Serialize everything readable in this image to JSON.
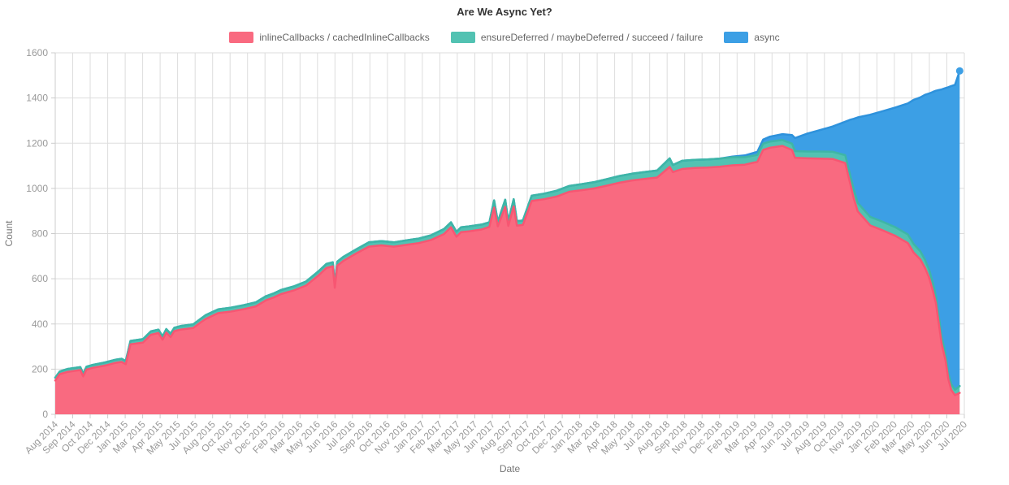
{
  "title": "Are We Async Yet?",
  "legend": [
    {
      "label": "inlineCallbacks / cachedInlineCallbacks",
      "color": "#F96A80",
      "edge": "#F75672"
    },
    {
      "label": "ensureDeferred / maybeDeferred / succeed / failure",
      "color": "#52C2B2",
      "edge": "#3EB6A6"
    },
    {
      "label": "async",
      "color": "#3C9FE5",
      "edge": "#2E92DC"
    }
  ],
  "colors": {
    "grid": "#DDDDDD",
    "axis": "#CCCCCC",
    "tick_text": "#999999",
    "axis_title_text": "#777777",
    "title_text": "#333333",
    "legend_text": "#666666",
    "background": "#FFFFFF"
  },
  "chart_data": {
    "type": "area",
    "stacked": true,
    "title": "Are We Async Yet?",
    "xlabel": "Date",
    "ylabel": "Count",
    "ylim": [
      0,
      1600
    ],
    "yticks": [
      0,
      200,
      400,
      600,
      800,
      1000,
      1200,
      1400,
      1600
    ],
    "grid": true,
    "legend_position": "top",
    "series_names": [
      "inlineCallbacks / cachedInlineCallbacks",
      "ensureDeferred / maybeDeferred / succeed / failure",
      "async"
    ],
    "xticklabels": [
      "Aug 2014",
      "Sep 2014",
      "Oct 2014",
      "Dec 2014",
      "Jan 2015",
      "Mar 2015",
      "Apr 2015",
      "May 2015",
      "Jul 2015",
      "Aug 2015",
      "Oct 2015",
      "Nov 2015",
      "Dec 2015",
      "Feb 2016",
      "Mar 2016",
      "May 2016",
      "Jun 2016",
      "Jul 2016",
      "Sep 2016",
      "Oct 2016",
      "Nov 2016",
      "Jan 2017",
      "Feb 2017",
      "Mar 2017",
      "May 2017",
      "Jun 2017",
      "Aug 2017",
      "Sep 2017",
      "Oct 2017",
      "Dec 2017",
      "Jan 2018",
      "Mar 2018",
      "Apr 2018",
      "May 2018",
      "Jul 2018",
      "Aug 2018",
      "Sep 2018",
      "Nov 2018",
      "Dec 2018",
      "Feb 2019",
      "Mar 2019",
      "Apr 2019",
      "Jun 2019",
      "Jul 2019",
      "Aug 2019",
      "Oct 2019",
      "Nov 2019",
      "Jan 2020",
      "Feb 2020",
      "Mar 2020",
      "May 2020",
      "Jun 2020",
      "Jul 2020"
    ],
    "columns": [
      "date",
      "inlineCallbacks / cachedInlineCallbacks",
      "ensureDeferred / maybeDeferred / succeed / failure",
      "async"
    ],
    "points": [
      [
        "2014-08-01",
        150,
        12,
        0
      ],
      [
        "2014-08-12",
        178,
        12,
        0
      ],
      [
        "2014-09-01",
        188,
        13,
        0
      ],
      [
        "2014-10-01",
        196,
        13,
        0
      ],
      [
        "2014-10-08",
        168,
        12,
        0
      ],
      [
        "2014-10-16",
        198,
        13,
        0
      ],
      [
        "2014-11-01",
        206,
        13,
        0
      ],
      [
        "2014-12-01",
        216,
        14,
        0
      ],
      [
        "2014-12-26",
        228,
        14,
        0
      ],
      [
        "2015-01-10",
        232,
        14,
        0
      ],
      [
        "2015-01-20",
        222,
        14,
        0
      ],
      [
        "2015-02-01",
        310,
        15,
        0
      ],
      [
        "2015-03-01",
        318,
        15,
        0
      ],
      [
        "2015-03-20",
        352,
        15,
        0
      ],
      [
        "2015-04-08",
        360,
        15,
        0
      ],
      [
        "2015-04-18",
        330,
        15,
        0
      ],
      [
        "2015-04-27",
        362,
        15,
        0
      ],
      [
        "2015-05-07",
        342,
        15,
        0
      ],
      [
        "2015-05-16",
        368,
        15,
        0
      ],
      [
        "2015-06-01",
        375,
        16,
        0
      ],
      [
        "2015-07-01",
        382,
        16,
        0
      ],
      [
        "2015-07-20",
        408,
        16,
        0
      ],
      [
        "2015-08-01",
        422,
        17,
        0
      ],
      [
        "2015-09-01",
        448,
        17,
        0
      ],
      [
        "2015-10-01",
        455,
        17,
        0
      ],
      [
        "2015-11-01",
        465,
        18,
        0
      ],
      [
        "2015-12-01",
        478,
        18,
        0
      ],
      [
        "2015-12-26",
        505,
        18,
        0
      ],
      [
        "2016-01-15",
        518,
        18,
        0
      ],
      [
        "2016-02-01",
        532,
        18,
        0
      ],
      [
        "2016-03-01",
        548,
        18,
        0
      ],
      [
        "2016-04-01",
        570,
        18,
        0
      ],
      [
        "2016-05-01",
        615,
        18,
        0
      ],
      [
        "2016-05-20",
        648,
        18,
        0
      ],
      [
        "2016-06-05",
        655,
        18,
        0
      ],
      [
        "2016-06-10",
        560,
        16,
        0
      ],
      [
        "2016-06-16",
        658,
        18,
        0
      ],
      [
        "2016-07-01",
        680,
        18,
        0
      ],
      [
        "2016-08-01",
        712,
        18,
        0
      ],
      [
        "2016-09-01",
        742,
        19,
        0
      ],
      [
        "2016-10-01",
        748,
        19,
        0
      ],
      [
        "2016-11-01",
        742,
        19,
        0
      ],
      [
        "2016-12-01",
        750,
        20,
        0
      ],
      [
        "2017-01-01",
        758,
        20,
        0
      ],
      [
        "2017-02-01",
        772,
        21,
        0
      ],
      [
        "2017-03-01",
        798,
        22,
        0
      ],
      [
        "2017-03-18",
        828,
        22,
        0
      ],
      [
        "2017-04-01",
        786,
        22,
        0
      ],
      [
        "2017-04-12",
        806,
        22,
        0
      ],
      [
        "2017-05-01",
        810,
        22,
        0
      ],
      [
        "2017-06-01",
        818,
        22,
        0
      ],
      [
        "2017-06-20",
        830,
        20,
        0
      ],
      [
        "2017-07-01",
        915,
        32,
        0
      ],
      [
        "2017-07-10",
        832,
        20,
        0
      ],
      [
        "2017-07-28",
        918,
        32,
        0
      ],
      [
        "2017-08-05",
        834,
        20,
        0
      ],
      [
        "2017-08-18",
        920,
        32,
        0
      ],
      [
        "2017-08-26",
        835,
        20,
        0
      ],
      [
        "2017-09-10",
        838,
        20,
        0
      ],
      [
        "2017-10-01",
        944,
        24,
        0
      ],
      [
        "2017-11-01",
        952,
        25,
        0
      ],
      [
        "2017-12-01",
        964,
        26,
        0
      ],
      [
        "2018-01-01",
        985,
        26,
        0
      ],
      [
        "2018-02-01",
        992,
        27,
        0
      ],
      [
        "2018-03-01",
        1000,
        28,
        0
      ],
      [
        "2018-04-01",
        1012,
        29,
        0
      ],
      [
        "2018-05-01",
        1025,
        30,
        0
      ],
      [
        "2018-06-01",
        1035,
        30,
        0
      ],
      [
        "2018-07-01",
        1042,
        30,
        0
      ],
      [
        "2018-08-01",
        1048,
        31,
        0
      ],
      [
        "2018-09-01",
        1095,
        38,
        0
      ],
      [
        "2018-09-09",
        1072,
        32,
        0
      ],
      [
        "2018-10-01",
        1086,
        36,
        0
      ],
      [
        "2018-11-01",
        1090,
        36,
        0
      ],
      [
        "2018-12-01",
        1092,
        36,
        0
      ],
      [
        "2019-01-01",
        1096,
        36,
        0
      ],
      [
        "2019-02-01",
        1102,
        36,
        3
      ],
      [
        "2019-03-01",
        1105,
        33,
        8
      ],
      [
        "2019-04-01",
        1118,
        30,
        14
      ],
      [
        "2019-04-15",
        1170,
        28,
        18
      ],
      [
        "2019-05-01",
        1180,
        27,
        22
      ],
      [
        "2019-06-01",
        1188,
        26,
        26
      ],
      [
        "2019-06-24",
        1170,
        28,
        38
      ],
      [
        "2019-07-01",
        1135,
        30,
        58
      ],
      [
        "2019-08-01",
        1133,
        30,
        80
      ],
      [
        "2019-09-01",
        1132,
        31,
        95
      ],
      [
        "2019-10-01",
        1130,
        32,
        112
      ],
      [
        "2019-11-01",
        1112,
        35,
        148
      ],
      [
        "2019-11-12",
        1030,
        38,
        235
      ],
      [
        "2019-11-22",
        955,
        38,
        315
      ],
      [
        "2019-12-01",
        898,
        38,
        378
      ],
      [
        "2020-01-01",
        836,
        38,
        452
      ],
      [
        "2020-02-01",
        814,
        38,
        490
      ],
      [
        "2020-03-01",
        790,
        38,
        530
      ],
      [
        "2020-04-01",
        758,
        38,
        580
      ],
      [
        "2020-04-15",
        716,
        38,
        638
      ],
      [
        "2020-05-01",
        685,
        36,
        682
      ],
      [
        "2020-05-12",
        648,
        36,
        730
      ],
      [
        "2020-05-22",
        606,
        35,
        779
      ],
      [
        "2020-06-01",
        545,
        34,
        848
      ],
      [
        "2020-06-08",
        492,
        33,
        907
      ],
      [
        "2020-06-15",
        403,
        32,
        1000
      ],
      [
        "2020-06-22",
        312,
        30,
        1096
      ],
      [
        "2020-07-01",
        240,
        28,
        1176
      ],
      [
        "2020-07-08",
        155,
        26,
        1267
      ],
      [
        "2020-07-15",
        108,
        25,
        1320
      ],
      [
        "2020-07-24",
        85,
        24,
        1349
      ],
      [
        "2020-08-05",
        95,
        30,
        1395
      ]
    ]
  }
}
